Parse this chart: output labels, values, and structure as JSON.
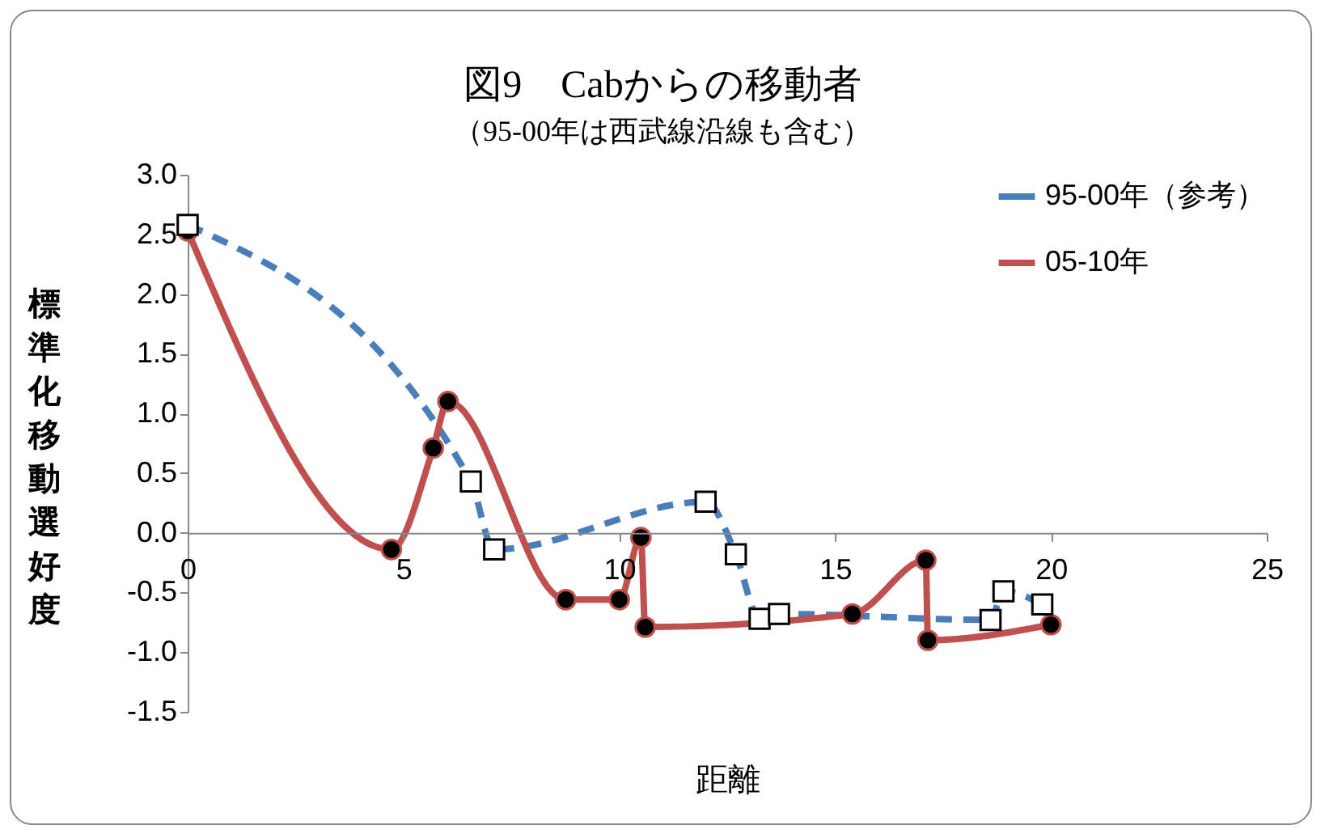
{
  "chart_data": {
    "type": "line",
    "title": "図9　Cabからの移動者",
    "subtitle": "（95-00年は西武線沿線も含む）",
    "xlabel": "距離",
    "ylabel": "標準化移動選好度",
    "xlim": [
      0,
      25
    ],
    "xticks": [
      0,
      5,
      10,
      15,
      20,
      25
    ],
    "ylim": [
      -1.5,
      3.0
    ],
    "yticks": [
      {
        "value": -1.5,
        "label": "-1.5"
      },
      {
        "value": -1,
        "label": "-1.0"
      },
      {
        "value": -0.5,
        "label": "-0.5"
      },
      {
        "value": 0,
        "label": "0.0"
      },
      {
        "value": 0.5,
        "label": "0.5"
      },
      {
        "value": 1,
        "label": "1.0"
      },
      {
        "value": 1.5,
        "label": "1.5"
      },
      {
        "value": 2,
        "label": "2.0"
      },
      {
        "value": 2.5,
        "label": "2.5"
      },
      {
        "value": 3,
        "label": "3.0"
      }
    ],
    "grid": false,
    "legend": "top right",
    "series": [
      {
        "name": "95-00年（参考）",
        "color": "#4a7ebb",
        "line_style": "dashed",
        "marker": "square",
        "x": [
          0,
          6.56,
          7.1,
          12.0,
          12.7,
          13.25,
          13.7,
          18.6,
          18.9,
          19.8
        ],
        "values": [
          2.58,
          0.43,
          -0.14,
          0.26,
          -0.18,
          -0.72,
          -0.68,
          -0.73,
          -0.49,
          -0.6
        ]
      },
      {
        "name": "05-10年",
        "color": "#c0504d",
        "line_style": "solid",
        "marker": "circle",
        "x": [
          0,
          4.72,
          5.69,
          6.03,
          8.76,
          10.0,
          10.5,
          10.6,
          15.4,
          17.1,
          17.15,
          20.0
        ],
        "values": [
          2.53,
          -0.14,
          0.71,
          1.1,
          -0.56,
          -0.56,
          -0.04,
          -0.79,
          -0.68,
          -0.23,
          -0.9,
          -0.77
        ]
      }
    ]
  }
}
